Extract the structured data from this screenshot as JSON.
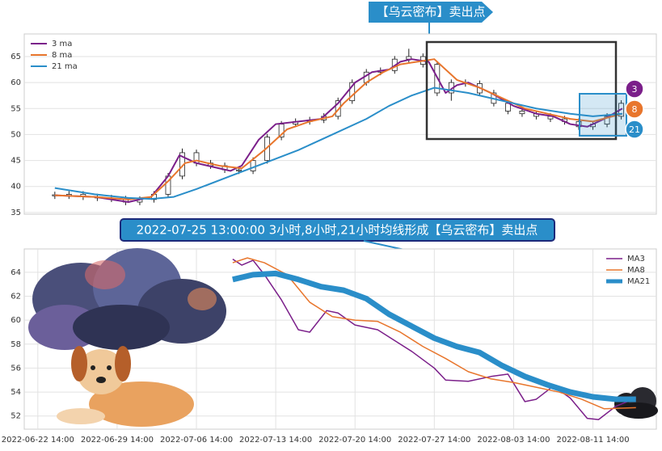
{
  "chart_data": [
    {
      "type": "candlestick",
      "annotation": "【乌云密布】卖出点",
      "badges": [
        3,
        8,
        21
      ],
      "xlim": [
        -1.2,
        54.6
      ],
      "ylim": [
        34.67,
        69.35
      ],
      "yticks": [
        35,
        40,
        45,
        50,
        55,
        60,
        65
      ],
      "grid": true,
      "legend": "top left",
      "candles": {
        "x": [
          1.5,
          2.75,
          4,
          5.25,
          6.5,
          7.75,
          9,
          10.25,
          11.5,
          12.75,
          14,
          15.25,
          16.5,
          17.75,
          19,
          20.25,
          21.5,
          22.75,
          24,
          25.25,
          26.5,
          27.75,
          29,
          30.25,
          31.5,
          32.75,
          34,
          35.25,
          36.5,
          37.75,
          39,
          40.25,
          41.5,
          42.75,
          44,
          45.25,
          46.5,
          47.75,
          49,
          50.25,
          51.5
        ],
        "open": [
          38.4,
          38.2,
          38.5,
          38,
          37.8,
          37.6,
          37,
          37.5,
          38.5,
          42,
          46.5,
          44.5,
          44,
          43.2,
          43,
          45,
          49.5,
          52,
          52.5,
          52.8,
          53.5,
          56.5,
          60,
          62,
          62.3,
          64.5,
          65,
          63.5,
          58,
          60,
          59.8,
          58,
          56,
          54.5,
          54,
          53.5,
          53,
          52.5,
          51.5,
          52,
          53.5
        ],
        "high": [
          39,
          39.1,
          39.1,
          38.6,
          38.4,
          38.2,
          38.1,
          39.1,
          42.6,
          47.3,
          47.1,
          45.1,
          44.6,
          43.8,
          45.6,
          50.1,
          52.6,
          53.1,
          53.4,
          54.1,
          57.1,
          60.6,
          62.6,
          62.9,
          65.1,
          66.5,
          65.6,
          64.1,
          60.6,
          60.6,
          60.4,
          58.6,
          56.6,
          55.1,
          54.6,
          54.1,
          53.6,
          53.1,
          52.6,
          54.1,
          56.6
        ],
        "low": [
          37.6,
          37.6,
          37.4,
          37.2,
          37,
          36.4,
          36.4,
          36.9,
          37.9,
          41.4,
          43.9,
          43.4,
          42.6,
          42.4,
          42.4,
          44.4,
          48.9,
          51.4,
          51.9,
          52.2,
          52.9,
          55.9,
          59.4,
          61.4,
          61.7,
          63.9,
          62.9,
          57.4,
          56.5,
          59.2,
          57.4,
          55.4,
          53.9,
          53.4,
          52.9,
          52.4,
          51.9,
          50.9,
          50.9,
          51.4,
          52.9
        ],
        "close": [
          38.2,
          38.5,
          38,
          37.8,
          37.6,
          37,
          37.5,
          38.5,
          42,
          46.5,
          44.5,
          44,
          43.2,
          43,
          45,
          49.5,
          52,
          52.5,
          52.8,
          53.5,
          56.5,
          60,
          62,
          62.3,
          64.5,
          65,
          63.5,
          58,
          60,
          59.8,
          58,
          56,
          54.5,
          54,
          53.5,
          53,
          52.5,
          51.5,
          52,
          53.5,
          56
        ]
      },
      "series": [
        {
          "name": "3 ma",
          "color": "#7b1f8a",
          "line_width": 2,
          "x": [
            1.5,
            5,
            8,
            10,
            11.5,
            12.5,
            14,
            16,
            17,
            18,
            19.5,
            21,
            23,
            25,
            26.5,
            28,
            29.5,
            31,
            32,
            33,
            34.5,
            36,
            37,
            38,
            40,
            42,
            44,
            45.5,
            47,
            48.5,
            50,
            51.6
          ],
          "values": [
            38.3,
            38,
            37,
            38,
            42,
            46,
            44.5,
            43.5,
            43,
            44,
            49,
            52,
            52.5,
            53,
            56,
            60,
            62,
            62.5,
            64,
            64.5,
            64,
            58,
            59.5,
            60,
            58,
            55.5,
            54,
            53.5,
            52,
            51.5,
            53,
            55
          ]
        },
        {
          "name": "8 ma",
          "color": "#e8762d",
          "line_width": 2,
          "x": [
            1.5,
            5,
            8,
            10,
            11.5,
            13,
            14,
            16,
            18,
            20,
            22,
            24,
            26,
            27,
            29,
            30.5,
            32,
            33.5,
            35,
            37,
            39,
            41,
            43,
            45,
            47,
            49,
            51.6
          ],
          "values": [
            38.3,
            38,
            37.5,
            38,
            41,
            44.5,
            45,
            44,
            43.5,
            47,
            51,
            52.5,
            53.5,
            56,
            60,
            62,
            63.5,
            64,
            64.5,
            60.5,
            59,
            57,
            55,
            54,
            53,
            52.5,
            54
          ]
        },
        {
          "name": "21 ma",
          "color": "#2a8ec9",
          "line_width": 2,
          "x": [
            1.5,
            5,
            8,
            10,
            12,
            14,
            17,
            20,
            23,
            26,
            29,
            31,
            33,
            35,
            38,
            41,
            44,
            47,
            49,
            51.6
          ],
          "values": [
            39.7,
            38.5,
            37.8,
            37.6,
            38,
            39.5,
            42,
            44.5,
            47,
            50,
            53,
            55.5,
            57.5,
            59,
            58,
            56.5,
            55,
            54,
            53.5,
            54
          ]
        }
      ]
    },
    {
      "type": "line",
      "annotation": "2022-07-25 13:00:00 3小时,8小时,21小时均线形成【乌云密布】卖出点",
      "xlim": [
        -1.2,
        54.6
      ],
      "ylim": [
        50.9,
        65.95
      ],
      "yticks": [
        52,
        54,
        56,
        58,
        60,
        62,
        64
      ],
      "grid": true,
      "legend": "top right",
      "xticks": [
        {
          "value": 0,
          "label": "2022-06-22 14:00"
        },
        {
          "value": 7,
          "label": "2022-06-29 14:00"
        },
        {
          "value": 14,
          "label": "2022-07-06 14:00"
        },
        {
          "value": 21,
          "label": "2022-07-13 14:00"
        },
        {
          "value": 28,
          "label": "2022-07-20 14:00"
        },
        {
          "value": 35,
          "label": "2022-07-27 14:00"
        },
        {
          "value": 42,
          "label": "2022-08-03 14:00"
        },
        {
          "value": 49,
          "label": "2022-08-11 14:00"
        }
      ],
      "series": [
        {
          "name": "MA3",
          "color": "#7b1f8a",
          "line_width": 1.5,
          "x": [
            17.2,
            18,
            19,
            20,
            21.5,
            23,
            24,
            25.5,
            26.5,
            28,
            30,
            31.5,
            33,
            35,
            36,
            38,
            40,
            41.5,
            43,
            44,
            45.5,
            47,
            48.5,
            49.5,
            51,
            52.8
          ],
          "values": [
            65.1,
            64.6,
            65,
            63.8,
            61.7,
            59.2,
            59,
            60.8,
            60.6,
            59.6,
            59.2,
            58.3,
            57.4,
            56,
            55,
            54.9,
            55.3,
            55.5,
            53.2,
            53.4,
            54.5,
            53.5,
            51.8,
            51.7,
            52.8,
            53.5
          ]
        },
        {
          "name": "MA8",
          "color": "#e8762d",
          "line_width": 1.5,
          "x": [
            17.2,
            18.5,
            20,
            22,
            24,
            26,
            28,
            30,
            32,
            34,
            36,
            38,
            40,
            42,
            44,
            46,
            48,
            50,
            52.8
          ],
          "values": [
            64.8,
            65.2,
            64.8,
            63.8,
            61.5,
            60.3,
            60,
            59.9,
            59,
            57.8,
            56.8,
            55.7,
            55.1,
            54.8,
            54.4,
            54,
            53.4,
            52.6,
            52.7
          ]
        },
        {
          "name": "MA21",
          "color": "#2a8ec9",
          "line_width": 7,
          "x": [
            17.2,
            19,
            21,
            23,
            25,
            27,
            29,
            31,
            33,
            35,
            37,
            39,
            41,
            43,
            45,
            47,
            49,
            51,
            52.8
          ],
          "values": [
            63.4,
            63.8,
            63.9,
            63.4,
            62.8,
            62.5,
            61.8,
            60.5,
            59.5,
            58.5,
            57.8,
            57.3,
            56.2,
            55.3,
            54.6,
            54,
            53.6,
            53.4,
            53.4
          ]
        }
      ]
    }
  ]
}
